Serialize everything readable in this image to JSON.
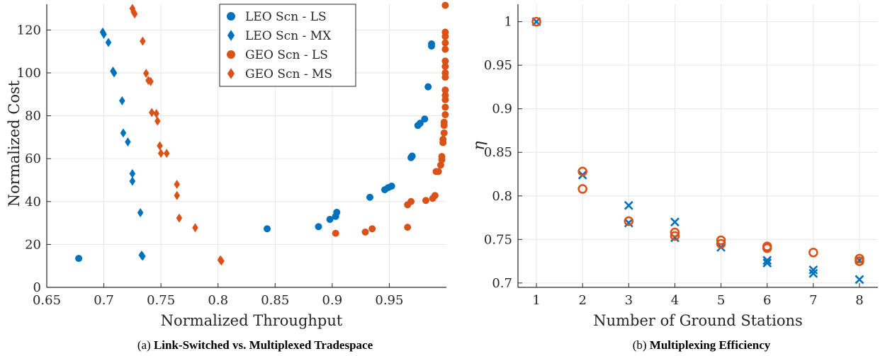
{
  "colors": {
    "leo": "#0072BD",
    "geo": "#D95319",
    "grid": "#e6e6e6",
    "axis": "#262626"
  },
  "chart_data": [
    {
      "type": "scatter",
      "caption_prefix": "(a)",
      "caption": "Link-Switched vs. Multiplexed Tradespace",
      "xlabel": "Normalized Throughput",
      "ylabel": "Normalized Cost",
      "xlim": [
        0.65,
        1.0
      ],
      "ylim": [
        0,
        132
      ],
      "xticks": [
        "0.65",
        "0.7",
        "0.75",
        "0.8",
        "0.85",
        "0.9",
        "0.95"
      ],
      "xtick_values": [
        0.65,
        0.7,
        0.75,
        0.8,
        0.85,
        0.9,
        0.95
      ],
      "yticks": [
        "0",
        "20",
        "40",
        "60",
        "80",
        "100",
        "120"
      ],
      "ytick_values": [
        0,
        20,
        40,
        60,
        80,
        100,
        120
      ],
      "grid": true,
      "legend_position": "top-center",
      "series": [
        {
          "name": "LEO Scn - LS",
          "marker": "circle",
          "color": "#0072BD",
          "points": [
            [
              0.678,
              13.5
            ],
            [
              0.843,
              27.3
            ],
            [
              0.888,
              28.3
            ],
            [
              0.898,
              31.7
            ],
            [
              0.903,
              33.1
            ],
            [
              0.904,
              35.0
            ],
            [
              0.933,
              42.0
            ],
            [
              0.946,
              45.5
            ],
            [
              0.949,
              46.5
            ],
            [
              0.952,
              47.2
            ],
            [
              0.969,
              60.5
            ],
            [
              0.97,
              61.2
            ],
            [
              0.975,
              75.5
            ],
            [
              0.977,
              76.5
            ],
            [
              0.981,
              78.5
            ],
            [
              0.984,
              93.5
            ],
            [
              0.987,
              112.5
            ],
            [
              0.987,
              113.5
            ]
          ]
        },
        {
          "name": "LEO Scn - MX",
          "marker": "diamond",
          "color": "#0072BD",
          "points": [
            [
              0.699,
              119.0
            ],
            [
              0.7,
              118.0
            ],
            [
              0.704,
              114.2
            ],
            [
              0.708,
              100.8
            ],
            [
              0.709,
              100.0
            ],
            [
              0.716,
              87.0
            ],
            [
              0.717,
              72.0
            ],
            [
              0.721,
              67.8
            ],
            [
              0.725,
              53.0
            ],
            [
              0.725,
              49.5
            ],
            [
              0.732,
              34.8
            ],
            [
              0.733,
              15.0
            ],
            [
              0.734,
              14.5
            ]
          ]
        },
        {
          "name": "GEO Scn - LS",
          "marker": "circle",
          "color": "#D95319",
          "points": [
            [
              0.903,
              25.2
            ],
            [
              0.929,
              25.8
            ],
            [
              0.935,
              27.3
            ],
            [
              0.966,
              28.0
            ],
            [
              0.966,
              38.5
            ],
            [
              0.969,
              40.0
            ],
            [
              0.982,
              40.5
            ],
            [
              0.988,
              41.5
            ],
            [
              0.99,
              42.8
            ],
            [
              0.991,
              54.0
            ],
            [
              0.993,
              54.0
            ],
            [
              0.995,
              57.0
            ],
            [
              0.996,
              59.5
            ],
            [
              0.996,
              61.0
            ],
            [
              0.997,
              67.5
            ],
            [
              0.997,
              69.0
            ],
            [
              0.998,
              72.0
            ],
            [
              0.998,
              75.5
            ],
            [
              0.998,
              77.0
            ],
            [
              0.999,
              80.5
            ],
            [
              0.999,
              84.0
            ],
            [
              0.999,
              87.5
            ],
            [
              0.999,
              89.5
            ],
            [
              0.999,
              92.0
            ],
            [
              0.999,
              98.0
            ],
            [
              0.999,
              100.0
            ],
            [
              0.999,
              103.0
            ],
            [
              0.999,
              105.5
            ],
            [
              0.999,
              111.0
            ],
            [
              0.999,
              114.0
            ],
            [
              0.999,
              117.0
            ],
            [
              0.999,
              119.0
            ],
            [
              0.999,
              131.5
            ]
          ]
        },
        {
          "name": "GEO Scn - MS",
          "marker": "diamond",
          "color": "#D95319",
          "points": [
            [
              0.725,
              130.0
            ],
            [
              0.726,
              128.5
            ],
            [
              0.727,
              127.5
            ],
            [
              0.734,
              114.8
            ],
            [
              0.737,
              99.8
            ],
            [
              0.739,
              96.5
            ],
            [
              0.741,
              96.0
            ],
            [
              0.742,
              81.5
            ],
            [
              0.746,
              81.0
            ],
            [
              0.747,
              77.5
            ],
            [
              0.749,
              66.0
            ],
            [
              0.75,
              62.5
            ],
            [
              0.755,
              62.5
            ],
            [
              0.764,
              48.0
            ],
            [
              0.764,
              42.8
            ],
            [
              0.766,
              32.3
            ],
            [
              0.78,
              27.8
            ],
            [
              0.802,
              12.8
            ],
            [
              0.803,
              12.3
            ]
          ]
        }
      ]
    },
    {
      "type": "scatter",
      "caption_prefix": "(b)",
      "caption": "Multiplexing Efficiency",
      "xlabel": "Number of Ground Stations",
      "ylabel": "η",
      "xlim": [
        0.6,
        8.4
      ],
      "ylim": [
        0.695,
        1.02
      ],
      "xticks": [
        "1",
        "2",
        "3",
        "4",
        "5",
        "6",
        "7",
        "8"
      ],
      "xtick_values": [
        1,
        2,
        3,
        4,
        5,
        6,
        7,
        8
      ],
      "yticks": [
        "0.7",
        "0.75",
        "0.8",
        "0.85",
        "0.9",
        "0.95",
        "1"
      ],
      "ytick_values": [
        0.7,
        0.75,
        0.8,
        0.85,
        0.9,
        0.95,
        1.0
      ],
      "grid": true,
      "series": [
        {
          "marker": "cross",
          "color": "#0072BD",
          "points": [
            [
              1,
              1.0
            ],
            [
              2,
              0.824
            ],
            [
              3,
              0.789
            ],
            [
              3,
              0.769
            ],
            [
              4,
              0.77
            ],
            [
              4,
              0.752
            ],
            [
              5,
              0.741
            ],
            [
              6,
              0.726
            ],
            [
              6,
              0.723
            ],
            [
              7,
              0.715
            ],
            [
              7,
              0.711
            ],
            [
              8,
              0.704
            ],
            [
              8,
              0.726
            ]
          ]
        },
        {
          "marker": "open-circle",
          "color": "#D95319",
          "points": [
            [
              1,
              1.0
            ],
            [
              2,
              0.828
            ],
            [
              2,
              0.808
            ],
            [
              3,
              0.771
            ],
            [
              4,
              0.758
            ],
            [
              4,
              0.754
            ],
            [
              5,
              0.749
            ],
            [
              5,
              0.745
            ],
            [
              6,
              0.742
            ],
            [
              6,
              0.74
            ],
            [
              7,
              0.735
            ],
            [
              8,
              0.728
            ],
            [
              8,
              0.725
            ]
          ]
        }
      ]
    }
  ]
}
